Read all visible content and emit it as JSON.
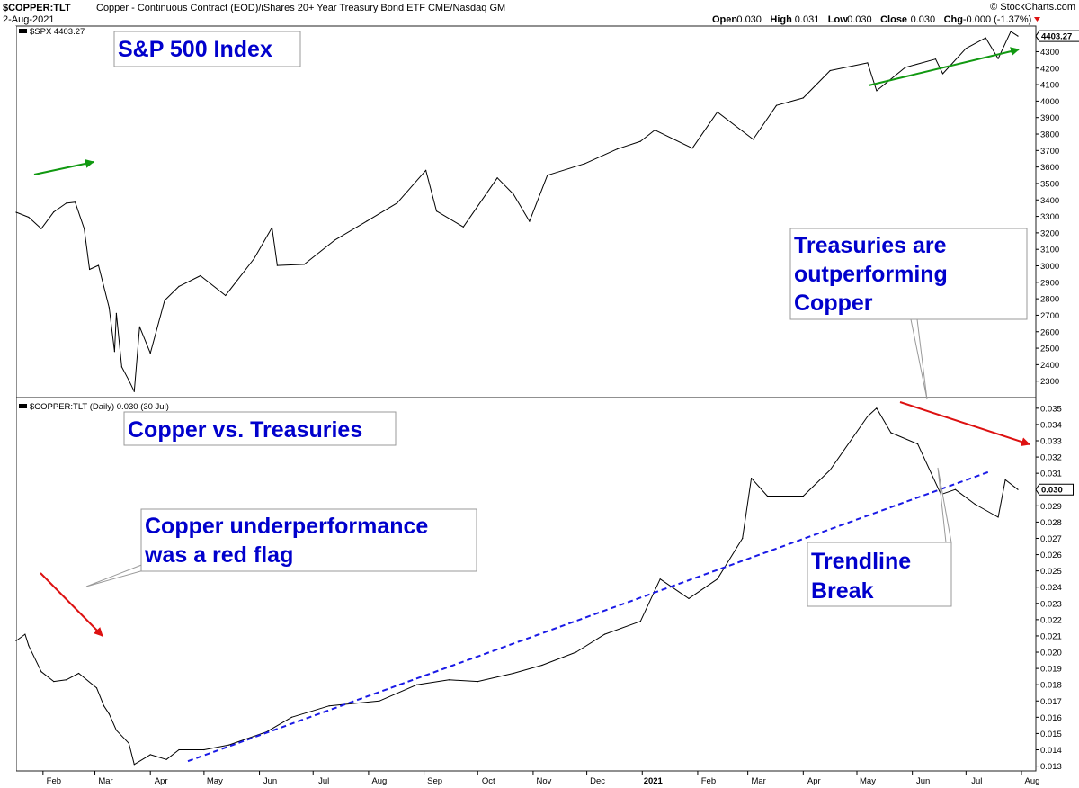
{
  "header": {
    "symbol": "$COPPER:TLT",
    "description": "Copper - Continuous Contract (EOD)/iShares 20+ Year Treasury Bond ETF  CME/Nasdaq GM",
    "date": "2-Aug-2021",
    "watermark": "© StockCharts.com",
    "ohlc": [
      {
        "label": "Open",
        "value": "0.030"
      },
      {
        "label": "High",
        "value": "0.031"
      },
      {
        "label": "Low",
        "value": "0.030"
      },
      {
        "label": "Close",
        "value": "0.030"
      },
      {
        "label": "Chg",
        "value": "-0.000 (-1.37%)"
      }
    ]
  },
  "colors": {
    "price_line": "#000000",
    "green_arrow": "#119911",
    "red_arrow": "#dd1111",
    "trendline": "#1a1ae6",
    "annotation_text": "#0000cc",
    "current_box": "#ffffff"
  },
  "chart_data": [
    {
      "type": "line",
      "panel": "upper",
      "series_label": "$SPX 4403.27",
      "current_value_label": "4403.27",
      "ylim": [
        2200,
        4450
      ],
      "y_ticks": [
        "2300",
        "2400",
        "2500",
        "2600",
        "2700",
        "2800",
        "2900",
        "3000",
        "3100",
        "3200",
        "3300",
        "3400",
        "3500",
        "3600",
        "3700",
        "3800",
        "3900",
        "4000",
        "4100",
        "4200",
        "4300"
      ],
      "points": [
        [
          "2020-01-17",
          3325
        ],
        [
          "2020-01-24",
          3295
        ],
        [
          "2020-01-31",
          3225
        ],
        [
          "2020-02-07",
          3327
        ],
        [
          "2020-02-14",
          3380
        ],
        [
          "2020-02-19",
          3386
        ],
        [
          "2020-02-24",
          3226
        ],
        [
          "2020-02-27",
          2978
        ],
        [
          "2020-03-03",
          3003
        ],
        [
          "2020-03-09",
          2746
        ],
        [
          "2020-03-12",
          2480
        ],
        [
          "2020-03-13",
          2711
        ],
        [
          "2020-03-16",
          2386
        ],
        [
          "2020-03-20",
          2305
        ],
        [
          "2020-03-23",
          2237
        ],
        [
          "2020-03-26",
          2630
        ],
        [
          "2020-04-01",
          2470
        ],
        [
          "2020-04-09",
          2790
        ],
        [
          "2020-04-17",
          2875
        ],
        [
          "2020-04-29",
          2940
        ],
        [
          "2020-05-13",
          2820
        ],
        [
          "2020-05-29",
          3044
        ],
        [
          "2020-06-08",
          3232
        ],
        [
          "2020-06-11",
          3002
        ],
        [
          "2020-06-26",
          3009
        ],
        [
          "2020-07-13",
          3155
        ],
        [
          "2020-07-31",
          3271
        ],
        [
          "2020-08-17",
          3381
        ],
        [
          "2020-09-02",
          3580
        ],
        [
          "2020-09-08",
          3332
        ],
        [
          "2020-09-23",
          3236
        ],
        [
          "2020-10-12",
          3534
        ],
        [
          "2020-10-21",
          3435
        ],
        [
          "2020-10-30",
          3270
        ],
        [
          "2020-11-09",
          3550
        ],
        [
          "2020-11-30",
          3621
        ],
        [
          "2020-12-18",
          3709
        ],
        [
          "2020-12-31",
          3756
        ],
        [
          "2021-01-08",
          3824
        ],
        [
          "2021-01-29",
          3714
        ],
        [
          "2021-02-12",
          3934
        ],
        [
          "2021-03-04",
          3768
        ],
        [
          "2021-03-17",
          3974
        ],
        [
          "2021-04-01",
          4019
        ],
        [
          "2021-04-16",
          4185
        ],
        [
          "2021-05-07",
          4232
        ],
        [
          "2021-05-12",
          4063
        ],
        [
          "2021-05-28",
          4204
        ],
        [
          "2021-06-14",
          4255
        ],
        [
          "2021-06-18",
          4166
        ],
        [
          "2021-07-01",
          4320
        ],
        [
          "2021-07-12",
          4384
        ],
        [
          "2021-07-19",
          4258
        ],
        [
          "2021-07-26",
          4422
        ],
        [
          "2021-07-30",
          4395
        ]
      ]
    },
    {
      "type": "line",
      "panel": "lower",
      "series_label": "$COPPER:TLT (Daily) 0.030 (30 Jul)",
      "current_value_label": "0.030",
      "ylim": [
        0.0127,
        0.0356
      ],
      "y_ticks": [
        "0.013",
        "0.014",
        "0.015",
        "0.016",
        "0.017",
        "0.018",
        "0.019",
        "0.020",
        "0.021",
        "0.022",
        "0.023",
        "0.024",
        "0.025",
        "0.026",
        "0.027",
        "0.028",
        "0.029",
        "0.031",
        "0.032",
        "0.033",
        "0.034",
        "0.035"
      ],
      "points": [
        [
          "2020-01-17",
          0.0207
        ],
        [
          "2020-01-22",
          0.0211
        ],
        [
          "2020-01-24",
          0.0204
        ],
        [
          "2020-01-31",
          0.0188
        ],
        [
          "2020-02-07",
          0.0182
        ],
        [
          "2020-02-14",
          0.0183
        ],
        [
          "2020-02-21",
          0.0187
        ],
        [
          "2020-03-02",
          0.0178
        ],
        [
          "2020-03-06",
          0.0167
        ],
        [
          "2020-03-09",
          0.0162
        ],
        [
          "2020-03-13",
          0.0152
        ],
        [
          "2020-03-20",
          0.0144
        ],
        [
          "2020-03-23",
          0.0131
        ],
        [
          "2020-04-01",
          0.0137
        ],
        [
          "2020-04-10",
          0.0134
        ],
        [
          "2020-04-17",
          0.014
        ],
        [
          "2020-05-01",
          0.014
        ],
        [
          "2020-05-15",
          0.0143
        ],
        [
          "2020-06-05",
          0.0151
        ],
        [
          "2020-06-19",
          0.016
        ],
        [
          "2020-07-10",
          0.0167
        ],
        [
          "2020-08-07",
          0.017
        ],
        [
          "2020-08-28",
          0.018
        ],
        [
          "2020-09-15",
          0.0183
        ],
        [
          "2020-10-01",
          0.0182
        ],
        [
          "2020-10-21",
          0.0187
        ],
        [
          "2020-11-06",
          0.0192
        ],
        [
          "2020-11-25",
          0.02
        ],
        [
          "2020-12-11",
          0.0211
        ],
        [
          "2020-12-31",
          0.0219
        ],
        [
          "2021-01-11",
          0.0245
        ],
        [
          "2021-01-27",
          0.0233
        ],
        [
          "2021-02-12",
          0.0245
        ],
        [
          "2021-02-26",
          0.027
        ],
        [
          "2021-03-03",
          0.0307
        ],
        [
          "2021-03-12",
          0.0296
        ],
        [
          "2021-04-01",
          0.0296
        ],
        [
          "2021-04-16",
          0.0312
        ],
        [
          "2021-05-07",
          0.0345
        ],
        [
          "2021-05-12",
          0.035
        ],
        [
          "2021-05-20",
          0.0335
        ],
        [
          "2021-06-04",
          0.0328
        ],
        [
          "2021-06-17",
          0.0297
        ],
        [
          "2021-06-25",
          0.03
        ],
        [
          "2021-07-06",
          0.0291
        ],
        [
          "2021-07-19",
          0.0283
        ],
        [
          "2021-07-23",
          0.0306
        ],
        [
          "2021-07-30",
          0.03
        ]
      ],
      "trendline": [
        [
          "2020-04-22",
          0.0133
        ],
        [
          "2021-07-14",
          0.0311
        ]
      ]
    }
  ],
  "x_axis": {
    "labels": [
      {
        "text": "Feb",
        "date": "2020-02-01"
      },
      {
        "text": "Mar",
        "date": "2020-03-01"
      },
      {
        "text": "Apr",
        "date": "2020-04-01"
      },
      {
        "text": "May",
        "date": "2020-05-01"
      },
      {
        "text": "Jun",
        "date": "2020-06-01"
      },
      {
        "text": "Jul",
        "date": "2020-07-01"
      },
      {
        "text": "Aug",
        "date": "2020-08-01"
      },
      {
        "text": "Sep",
        "date": "2020-09-01"
      },
      {
        "text": "Oct",
        "date": "2020-10-01"
      },
      {
        "text": "Nov",
        "date": "2020-11-01"
      },
      {
        "text": "Dec",
        "date": "2020-12-01"
      },
      {
        "text": "2021",
        "date": "2021-01-01"
      },
      {
        "text": "Feb",
        "date": "2021-02-01"
      },
      {
        "text": "Mar",
        "date": "2021-03-01"
      },
      {
        "text": "Apr",
        "date": "2021-04-01"
      },
      {
        "text": "May",
        "date": "2021-05-01"
      },
      {
        "text": "Jun",
        "date": "2021-06-01"
      },
      {
        "text": "Jul",
        "date": "2021-07-01"
      },
      {
        "text": "Aug",
        "date": "2021-08-01"
      }
    ]
  },
  "annotations": {
    "sp500_title": [
      "S&P 500 Index"
    ],
    "treasuries": [
      "Treasuries are",
      "outperforming",
      "Copper"
    ],
    "copper_vs_treasuries": [
      "Copper vs. Treasuries"
    ],
    "underperformance": [
      "Copper underperformance",
      "was a red flag"
    ],
    "trendline_break": [
      "Trendline",
      "Break"
    ]
  }
}
